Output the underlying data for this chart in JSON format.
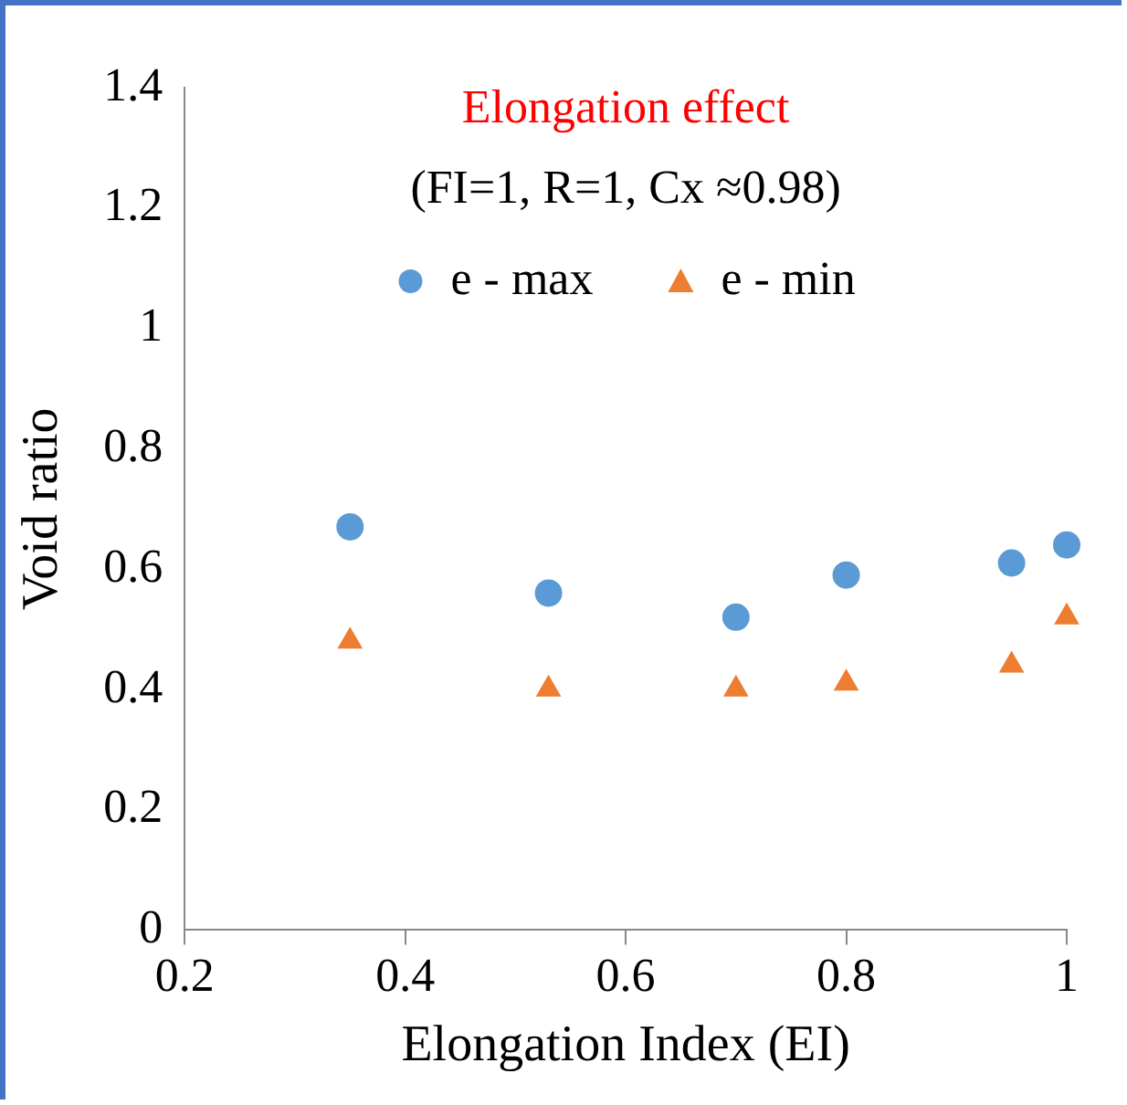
{
  "chart_data": {
    "type": "scatter",
    "title": "Elongation effect",
    "subtitle": "(FI=1, R=1, Cx ≈0.98)",
    "xlabel": "Elongation Index (EI)",
    "ylabel": "Void ratio",
    "x": [
      0.35,
      0.53,
      0.7,
      0.8,
      0.95,
      1.0
    ],
    "series": [
      {
        "name": "e - max",
        "color": "#5b9bd5",
        "marker": "circle",
        "values": [
          0.67,
          0.56,
          0.52,
          0.59,
          0.61,
          0.64
        ]
      },
      {
        "name": "e - min",
        "color": "#ed7d31",
        "marker": "triangle",
        "values": [
          0.48,
          0.4,
          0.4,
          0.41,
          0.44,
          0.52
        ]
      }
    ],
    "xlim": [
      0.2,
      1
    ],
    "xticks": [
      0.2,
      0.4,
      0.6,
      0.8,
      1
    ],
    "ylim": [
      0,
      1.4
    ],
    "yticks": [
      0,
      0.2,
      0.4,
      0.6,
      0.8,
      1,
      1.2,
      1.4
    ],
    "grid": false,
    "legend": "top"
  }
}
